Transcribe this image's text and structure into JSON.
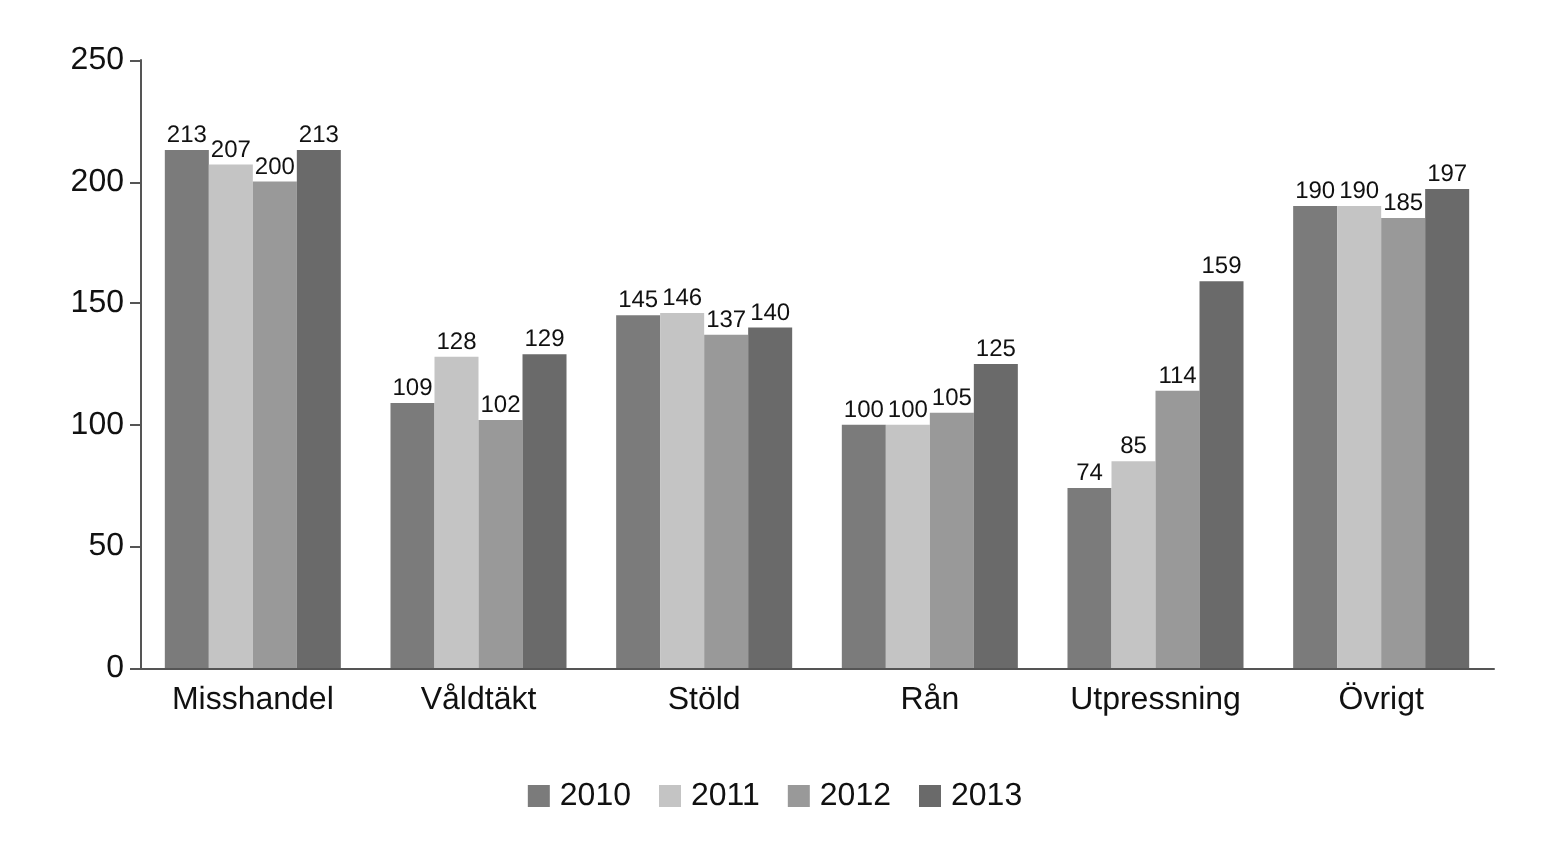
{
  "chart_data": {
    "type": "bar",
    "categories": [
      "Misshandel",
      "Våldtäkt",
      "Stöld",
      "Rån",
      "Utpressning",
      "Övrigt"
    ],
    "series": [
      {
        "name": "2010",
        "color": "#7b7b7b",
        "values": [
          213,
          109,
          145,
          100,
          74,
          190
        ]
      },
      {
        "name": "2011",
        "color": "#c4c4c4",
        "values": [
          207,
          128,
          146,
          100,
          85,
          190
        ]
      },
      {
        "name": "2012",
        "color": "#999999",
        "values": [
          200,
          102,
          137,
          105,
          114,
          185
        ]
      },
      {
        "name": "2013",
        "color": "#6a6a6a",
        "values": [
          213,
          129,
          140,
          125,
          159,
          197
        ]
      }
    ],
    "ylim": [
      0,
      250
    ],
    "yticks": [
      0,
      50,
      100,
      150,
      200,
      250
    ],
    "grid": false,
    "legend": "bottom",
    "data_labels": true
  }
}
